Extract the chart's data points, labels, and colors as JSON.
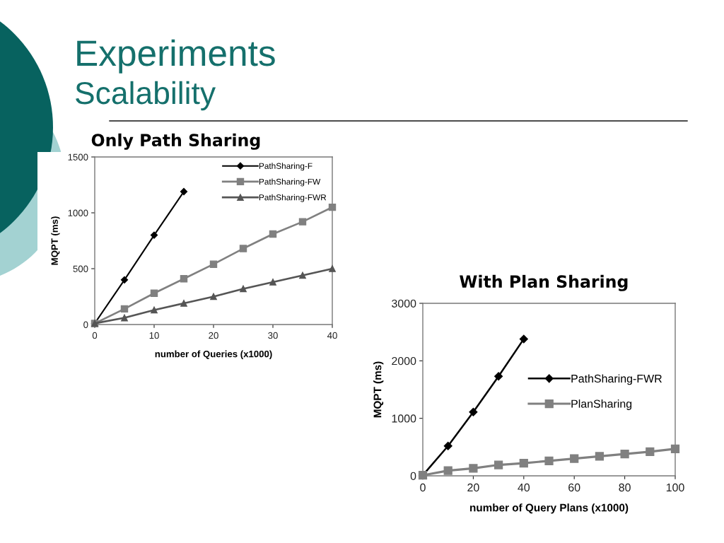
{
  "chart_data": [
    {
      "type": "other",
      "title": "Experiments",
      "subtitle": "Scalability"
    },
    {
      "type": "line",
      "title": "Only Path Sharing",
      "xlabel": "number of Queries (x1000)",
      "ylabel": "MQPT (ms)",
      "x": [
        0,
        5,
        10,
        15,
        20,
        25,
        30,
        35,
        40
      ],
      "xlim": [
        0,
        40
      ],
      "xticks": [
        0,
        10,
        20,
        30,
        40
      ],
      "ylim": [
        0,
        1500
      ],
      "yticks": [
        0,
        500,
        1000,
        1500
      ],
      "legend": "top right",
      "line_style": "solid",
      "series": [
        {
          "name": "PathSharing-F",
          "color": "#000000",
          "marker": "diamond",
          "values": [
            10,
            400,
            800,
            1190,
            null,
            null,
            null,
            null,
            null
          ]
        },
        {
          "name": "PathSharing-FW",
          "color": "#808080",
          "marker": "square",
          "values": [
            10,
            140,
            280,
            410,
            540,
            680,
            810,
            920,
            1050
          ]
        },
        {
          "name": "PathSharing-FWR",
          "color": "#555555",
          "marker": "triangle",
          "values": [
            10,
            60,
            130,
            190,
            250,
            320,
            380,
            440,
            500
          ]
        }
      ]
    },
    {
      "type": "line",
      "title": "With Plan Sharing",
      "xlabel": "number of Query Plans (x1000)",
      "ylabel": "MQPT (ms)",
      "x": [
        0,
        10,
        20,
        30,
        40,
        50,
        60,
        70,
        80,
        90,
        100
      ],
      "xlim": [
        0,
        100
      ],
      "xticks": [
        0,
        20,
        40,
        60,
        80,
        100
      ],
      "ylim": [
        0,
        3000
      ],
      "yticks": [
        0,
        1000,
        2000,
        3000
      ],
      "legend": "right",
      "line_style": "solid",
      "series": [
        {
          "name": "PathSharing-FWR",
          "color": "#000000",
          "marker": "diamond",
          "values": [
            10,
            520,
            1110,
            1730,
            2380,
            null,
            null,
            null,
            null,
            null,
            null
          ]
        },
        {
          "name": "PlanSharing",
          "color": "#808080",
          "marker": "square",
          "values": [
            10,
            90,
            130,
            190,
            220,
            260,
            300,
            340,
            380,
            420,
            470
          ]
        }
      ]
    }
  ]
}
